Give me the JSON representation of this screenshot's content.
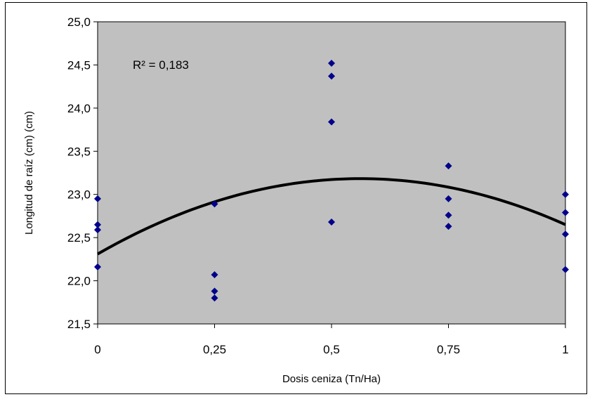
{
  "chart_data": {
    "type": "scatter",
    "title": "",
    "xlabel": "Dosis ceniza (Tn/Ha)",
    "ylabel": "Longitud de raíz (cm)  (cm)",
    "xlim": [
      0,
      1
    ],
    "ylim": [
      21.5,
      25.0
    ],
    "x_ticks": [
      0,
      0.25,
      0.5,
      0.75,
      1
    ],
    "x_tick_labels": [
      "0",
      "0,25",
      "0,5",
      "0,75",
      "1"
    ],
    "y_ticks": [
      21.5,
      22.0,
      22.5,
      23.0,
      23.5,
      24.0,
      24.5,
      25.0
    ],
    "y_tick_labels": [
      "21,5",
      "22,0",
      "22,5",
      "23,0",
      "23,5",
      "24,0",
      "24,5",
      "25,0"
    ],
    "grid": false,
    "plot_background": "#c0c0c0",
    "marker_color": "#00008b",
    "trend_color": "#000000",
    "points": [
      {
        "x": 0,
        "y": 22.95
      },
      {
        "x": 0,
        "y": 22.65
      },
      {
        "x": 0,
        "y": 22.59
      },
      {
        "x": 0,
        "y": 22.16
      },
      {
        "x": 0.25,
        "y": 22.89
      },
      {
        "x": 0.25,
        "y": 22.07
      },
      {
        "x": 0.25,
        "y": 21.88
      },
      {
        "x": 0.25,
        "y": 21.8
      },
      {
        "x": 0.5,
        "y": 24.52
      },
      {
        "x": 0.5,
        "y": 24.37
      },
      {
        "x": 0.5,
        "y": 23.84
      },
      {
        "x": 0.5,
        "y": 22.68
      },
      {
        "x": 0.75,
        "y": 23.33
      },
      {
        "x": 0.75,
        "y": 22.95
      },
      {
        "x": 0.75,
        "y": 22.76
      },
      {
        "x": 0.75,
        "y": 22.63
      },
      {
        "x": 1,
        "y": 23.0
      },
      {
        "x": 1,
        "y": 22.79
      },
      {
        "x": 1,
        "y": 22.54
      },
      {
        "x": 1,
        "y": 22.13
      }
    ],
    "trendline": {
      "type": "polynomial",
      "coefficients": [
        22.31,
        3.11,
        -2.77
      ],
      "annotation": "R² = 0,183"
    }
  }
}
